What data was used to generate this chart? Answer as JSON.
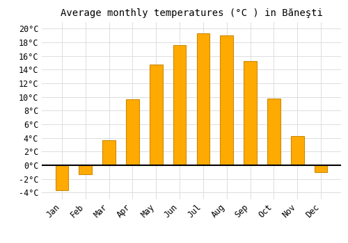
{
  "title": "Average monthly temperatures (°C ) in Băneşti",
  "months": [
    "Jan",
    "Feb",
    "Mar",
    "Apr",
    "May",
    "Jun",
    "Jul",
    "Aug",
    "Sep",
    "Oct",
    "Nov",
    "Dec"
  ],
  "values": [
    -3.7,
    -1.3,
    3.7,
    9.7,
    14.7,
    17.6,
    19.3,
    19.0,
    15.3,
    9.8,
    4.3,
    -1.0
  ],
  "bar_color": "#FFAA00",
  "bar_edge_color": "#CC8800",
  "background_color": "#FFFFFF",
  "grid_color": "#DDDDDD",
  "ylim": [
    -5,
    21
  ],
  "yticks": [
    -4,
    -2,
    0,
    2,
    4,
    6,
    8,
    10,
    12,
    14,
    16,
    18,
    20
  ],
  "title_fontsize": 10,
  "tick_fontsize": 8.5
}
